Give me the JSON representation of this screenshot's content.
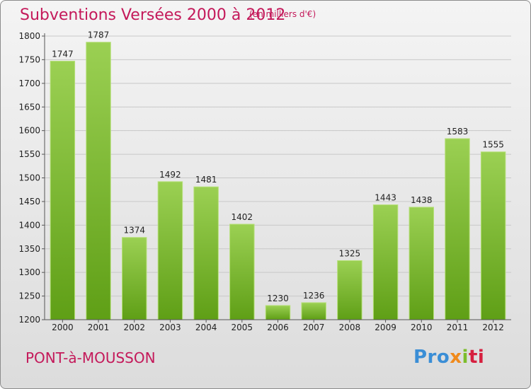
{
  "header": {
    "title": "Subventions Versées 2000 à 2012",
    "subtitle": "(en milliers d'€)"
  },
  "footer": {
    "town": "PONT-à-MOUSSON",
    "logo_parts": [
      "Pro",
      "x",
      "i",
      "ti"
    ]
  },
  "colors": {
    "title": "#c4195a",
    "bar_top": "#9bd053",
    "bar_bottom": "#5f9f16"
  },
  "chart_data": {
    "type": "bar",
    "title": "Subventions Versées 2000 à 2012",
    "subtitle": "(en milliers d'€)",
    "xlabel": "",
    "ylabel": "",
    "categories": [
      "2000",
      "2001",
      "2002",
      "2003",
      "2004",
      "2005",
      "2006",
      "2007",
      "2008",
      "2009",
      "2010",
      "2011",
      "2012"
    ],
    "values": [
      1747,
      1787,
      1374,
      1492,
      1481,
      1402,
      1230,
      1236,
      1325,
      1443,
      1438,
      1583,
      1555
    ],
    "ylim": [
      1200,
      1800
    ],
    "yticks": [
      1200,
      1250,
      1300,
      1350,
      1400,
      1450,
      1500,
      1550,
      1600,
      1650,
      1700,
      1750,
      1800
    ],
    "grid": true,
    "legend": "none"
  }
}
